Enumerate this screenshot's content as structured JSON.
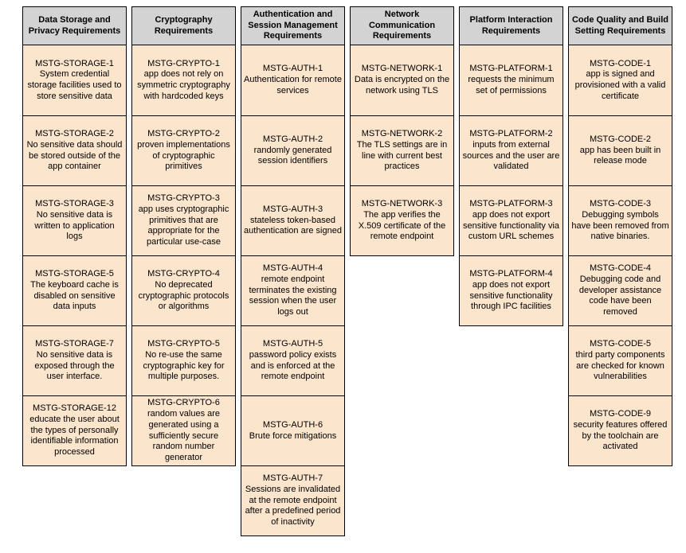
{
  "colors": {
    "header_bg": "#d3d3d3",
    "cell_bg": "#fce5cd",
    "border": "#000000",
    "page_bg": "#ffffff"
  },
  "diagram": {
    "columns": [
      {
        "key": "data-storage",
        "header": "Data Storage and Privacy Requirements",
        "cells": [
          {
            "id": "MSTG-STORAGE-1",
            "text": "System credential storage facilities used to store sensitive data"
          },
          {
            "id": "MSTG-STORAGE-2",
            "text": "No sensitive data should be stored outside of the app container"
          },
          {
            "id": "MSTG-STORAGE-3",
            "text": "No sensitive data is written to application logs"
          },
          {
            "id": "MSTG-STORAGE-5",
            "text": "The keyboard cache is disabled on sensitive data inputs"
          },
          {
            "id": "MSTG-STORAGE-7",
            "text": "No sensitive data is exposed through the user interface."
          },
          {
            "id": "MSTG-STORAGE-12",
            "text": "educate the user about the types of personally identifiable information processed"
          }
        ]
      },
      {
        "key": "cryptography",
        "header": "Cryptography Requirements",
        "cells": [
          {
            "id": "MSTG-CRYPTO-1",
            "text": "app does not rely on symmetric cryptography with hardcoded keys"
          },
          {
            "id": "MSTG-CRYPTO-2",
            "text": "proven implementations of cryptographic primitives"
          },
          {
            "id": "MSTG-CRYPTO-3",
            "text": "app uses cryptographic primitives that are appropriate for the particular use-case"
          },
          {
            "id": "MSTG-CRYPTO-4",
            "text": "No deprecated cryptographic protocols or algorithms"
          },
          {
            "id": "MSTG-CRYPTO-5",
            "text": "No re-use the same cryptographic key for multiple purposes."
          },
          {
            "id": "MSTG-CRYPTO-6",
            "text": "random values are generated using a sufficiently secure random number generator"
          }
        ]
      },
      {
        "key": "authentication",
        "header": "Authentication and Session Management Requirements",
        "cells": [
          {
            "id": "MSTG-AUTH-1",
            "text": "Authentication for remote services"
          },
          {
            "id": "MSTG-AUTH-2",
            "text": "randomly generated session identifiers"
          },
          {
            "id": "MSTG-AUTH-3",
            "text": "stateless token-based authentication are signed"
          },
          {
            "id": "MSTG-AUTH-4",
            "text": "remote endpoint terminates the existing session when the user logs out"
          },
          {
            "id": "MSTG-AUTH-5",
            "text": "password policy exists and is enforced at the remote endpoint"
          },
          {
            "id": "MSTG-AUTH-6",
            "text": "Brute force mitigations"
          },
          {
            "id": "MSTG-AUTH-7",
            "text": "Sessions are invalidated at the remote endpoint after a predefined period of inactivity"
          }
        ]
      },
      {
        "key": "network",
        "header": "Network Communication Requirements",
        "cells": [
          {
            "id": "MSTG-NETWORK-1",
            "text": "Data is encrypted on the network using TLS"
          },
          {
            "id": "MSTG-NETWORK-2",
            "text": "The TLS settings are in line with current best practices"
          },
          {
            "id": "MSTG-NETWORK-3",
            "text": "The app verifies the X.509 certificate of the remote endpoint"
          }
        ]
      },
      {
        "key": "platform",
        "header": "Platform Interaction Requirements",
        "cells": [
          {
            "id": "MSTG-PLATFORM-1",
            "text": "requests the minimum set of permissions"
          },
          {
            "id": "MSTG-PLATFORM-2",
            "text": "inputs from external sources and the user are validated"
          },
          {
            "id": "MSTG-PLATFORM-3",
            "text": "app does not export sensitive functionality via custom URL schemes"
          },
          {
            "id": "MSTG-PLATFORM-4",
            "text": "app does not export sensitive functionality through IPC facilities"
          }
        ]
      },
      {
        "key": "code-quality",
        "header": "Code Quality and Build Setting Requirements",
        "cells": [
          {
            "id": "MSTG-CODE-1",
            "text": "app is signed and provisioned with a valid certificate"
          },
          {
            "id": "MSTG-CODE-2",
            "text": "app has been built in release mode"
          },
          {
            "id": "MSTG-CODE-3",
            "text": "Debugging symbols have been removed from native binaries."
          },
          {
            "id": "MSTG-CODE-4",
            "text": "Debugging code and developer assistance code have been removed"
          },
          {
            "id": "MSTG-CODE-5",
            "text": "third party components are checked for known vulnerabilities"
          },
          {
            "id": "MSTG-CODE-9",
            "text": "security features offered by the toolchain are activated"
          }
        ]
      }
    ]
  }
}
